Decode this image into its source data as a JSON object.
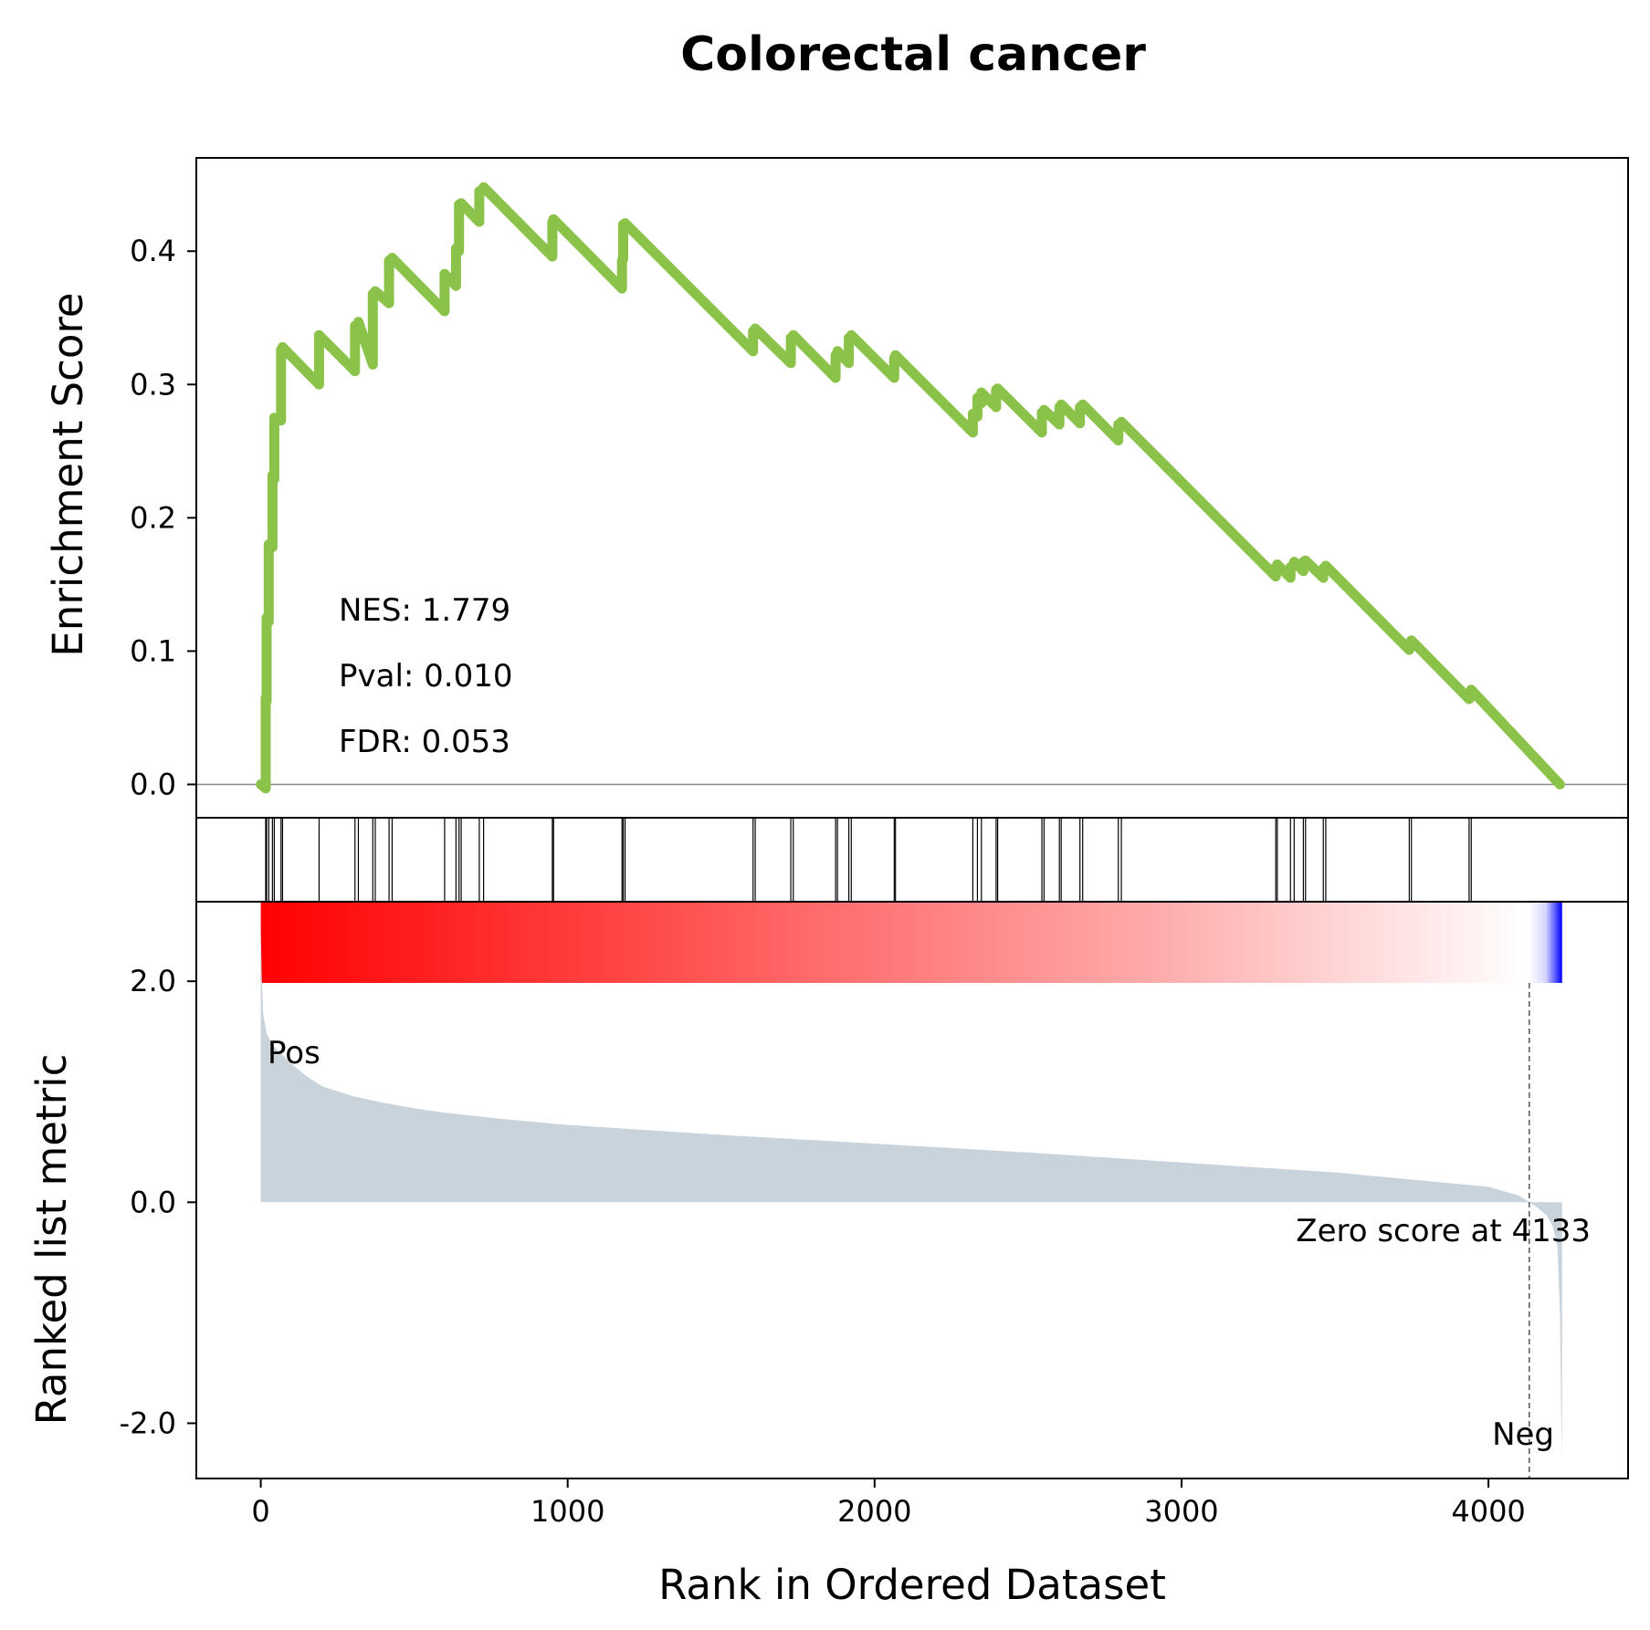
{
  "chart_data": {
    "type": "line",
    "title": "Colorectal cancer",
    "xlabel": "Rank in Ordered Dataset",
    "xlim": [
      -210,
      4455
    ],
    "x_ticks": [
      0,
      1000,
      2000,
      3000,
      4000
    ],
    "x_tick_labels": [
      "0",
      "1000",
      "2000",
      "3000",
      "4000"
    ],
    "enrichment": {
      "ylabel": "Enrichment Score",
      "ylim": [
        -0.025,
        0.47
      ],
      "y_ticks": [
        0.0,
        0.1,
        0.2,
        0.3,
        0.4
      ],
      "y_tick_labels": [
        "0.0",
        "0.1",
        "0.2",
        "0.3",
        "0.4"
      ],
      "line_color": "#8bc34a",
      "baseline": 0.0,
      "stats": {
        "nes": "NES: 1.779",
        "pval": "Pval: 0.010",
        "fdr": "FDR: 0.053"
      },
      "series": [
        {
          "x": [
            0,
            16,
            16,
            19,
            19,
            26,
            26,
            38,
            38,
            44,
            44,
            66,
            66,
            71,
            71,
            190,
            190,
            307,
            307,
            318,
            318,
            365,
            365,
            373,
            373,
            418,
            418,
            428,
            428,
            599,
            599,
            636,
            636,
            646,
            646,
            653,
            653,
            712,
            712,
            726,
            726,
            950,
            950,
            954,
            954,
            1177,
            1177,
            1181,
            1181,
            1187,
            1187,
            1604,
            1604,
            1611,
            1611,
            1727,
            1727,
            1735,
            1735,
            1873,
            1873,
            1879,
            1879,
            1916,
            1916,
            1924,
            1924,
            2064,
            2064,
            2068,
            2068,
            2320,
            2320,
            2335,
            2335,
            2348,
            2348,
            2396,
            2396,
            2401,
            2401,
            2545,
            2545,
            2552,
            2552,
            2602,
            2602,
            2608,
            2608,
            2669,
            2669,
            2678,
            2678,
            2794,
            2794,
            2804,
            2804,
            3307,
            3307,
            3312,
            3312,
            3355,
            3355,
            3367,
            3367,
            3397,
            3397,
            3404,
            3404,
            3462,
            3462,
            3470,
            3470,
            3742,
            3742,
            3749,
            3749,
            3937,
            3937,
            3944,
            3944,
            4233
          ],
          "y": [
            0.0,
            -0.003,
            0.065,
            0.062,
            0.125,
            0.122,
            0.18,
            0.178,
            0.232,
            0.229,
            0.275,
            0.273,
            0.326,
            0.325,
            0.328,
            0.3,
            0.337,
            0.31,
            0.344,
            0.343,
            0.347,
            0.315,
            0.368,
            0.366,
            0.37,
            0.361,
            0.393,
            0.392,
            0.395,
            0.355,
            0.383,
            0.374,
            0.402,
            0.4,
            0.435,
            0.434,
            0.436,
            0.422,
            0.445,
            0.446,
            0.448,
            0.396,
            0.422,
            0.423,
            0.424,
            0.372,
            0.393,
            0.394,
            0.42,
            0.419,
            0.421,
            0.325,
            0.34,
            0.341,
            0.342,
            0.316,
            0.335,
            0.336,
            0.337,
            0.305,
            0.322,
            0.324,
            0.325,
            0.316,
            0.335,
            0.336,
            0.337,
            0.305,
            0.32,
            0.321,
            0.322,
            0.264,
            0.278,
            0.276,
            0.29,
            0.286,
            0.294,
            0.283,
            0.296,
            0.295,
            0.297,
            0.264,
            0.279,
            0.28,
            0.281,
            0.27,
            0.283,
            0.284,
            0.285,
            0.271,
            0.283,
            0.284,
            0.285,
            0.258,
            0.27,
            0.271,
            0.272,
            0.156,
            0.163,
            0.164,
            0.165,
            0.155,
            0.163,
            0.165,
            0.167,
            0.16,
            0.167,
            0.168,
            0.168,
            0.155,
            0.162,
            0.163,
            0.164,
            0.101,
            0.106,
            0.107,
            0.108,
            0.064,
            0.069,
            0.07,
            0.071,
            0.0
          ]
        }
      ]
    },
    "hits": {
      "positions": [
        16,
        19,
        26,
        38,
        44,
        66,
        71,
        190,
        307,
        318,
        365,
        373,
        418,
        428,
        599,
        636,
        646,
        653,
        712,
        726,
        950,
        954,
        1177,
        1181,
        1187,
        1604,
        1611,
        1727,
        1735,
        1873,
        1879,
        1916,
        1924,
        2064,
        2068,
        2320,
        2335,
        2348,
        2396,
        2401,
        2545,
        2552,
        2602,
        2608,
        2669,
        2678,
        2794,
        2804,
        3307,
        3312,
        3355,
        3367,
        3397,
        3404,
        3462,
        3470,
        3742,
        3749,
        3937,
        3944
      ]
    },
    "heatmap": {
      "range": [
        0,
        4240
      ],
      "zero_score": 4133,
      "colors": {
        "positive": "#ff0000",
        "neutral": "#ffffff",
        "negative": "#0000ff"
      }
    },
    "ranked_metric": {
      "ylabel": "Ranked list metric",
      "ylim": [
        -2.5,
        2.72
      ],
      "y_ticks": [
        2.0,
        0.0,
        -2.0
      ],
      "y_tick_labels": [
        "2.0",
        "0.0",
        "-2.0"
      ],
      "fill_color": "#c9d3dc",
      "pos_label": "Pos",
      "neg_label": "Neg",
      "pos_color": "#ff0000",
      "neg_color": "#0000ff",
      "zero_label": "Zero score at 4133",
      "zero_rank": 4133,
      "series": [
        {
          "x": [
            0,
            3,
            8,
            20,
            40,
            60,
            100,
            150,
            200,
            300,
            400,
            500,
            600,
            800,
            1000,
            1500,
            2000,
            2500,
            3000,
            3500,
            4000,
            4100,
            4133,
            4160,
            4190,
            4210,
            4225,
            4233,
            4237,
            4240
          ],
          "y": [
            2.48,
            2.05,
            1.7,
            1.52,
            1.42,
            1.36,
            1.25,
            1.14,
            1.05,
            0.96,
            0.9,
            0.85,
            0.81,
            0.75,
            0.7,
            0.61,
            0.53,
            0.45,
            0.36,
            0.27,
            0.14,
            0.06,
            0.0,
            -0.05,
            -0.12,
            -0.22,
            -0.4,
            -1.0,
            -1.9,
            -2.3
          ]
        }
      ]
    }
  }
}
